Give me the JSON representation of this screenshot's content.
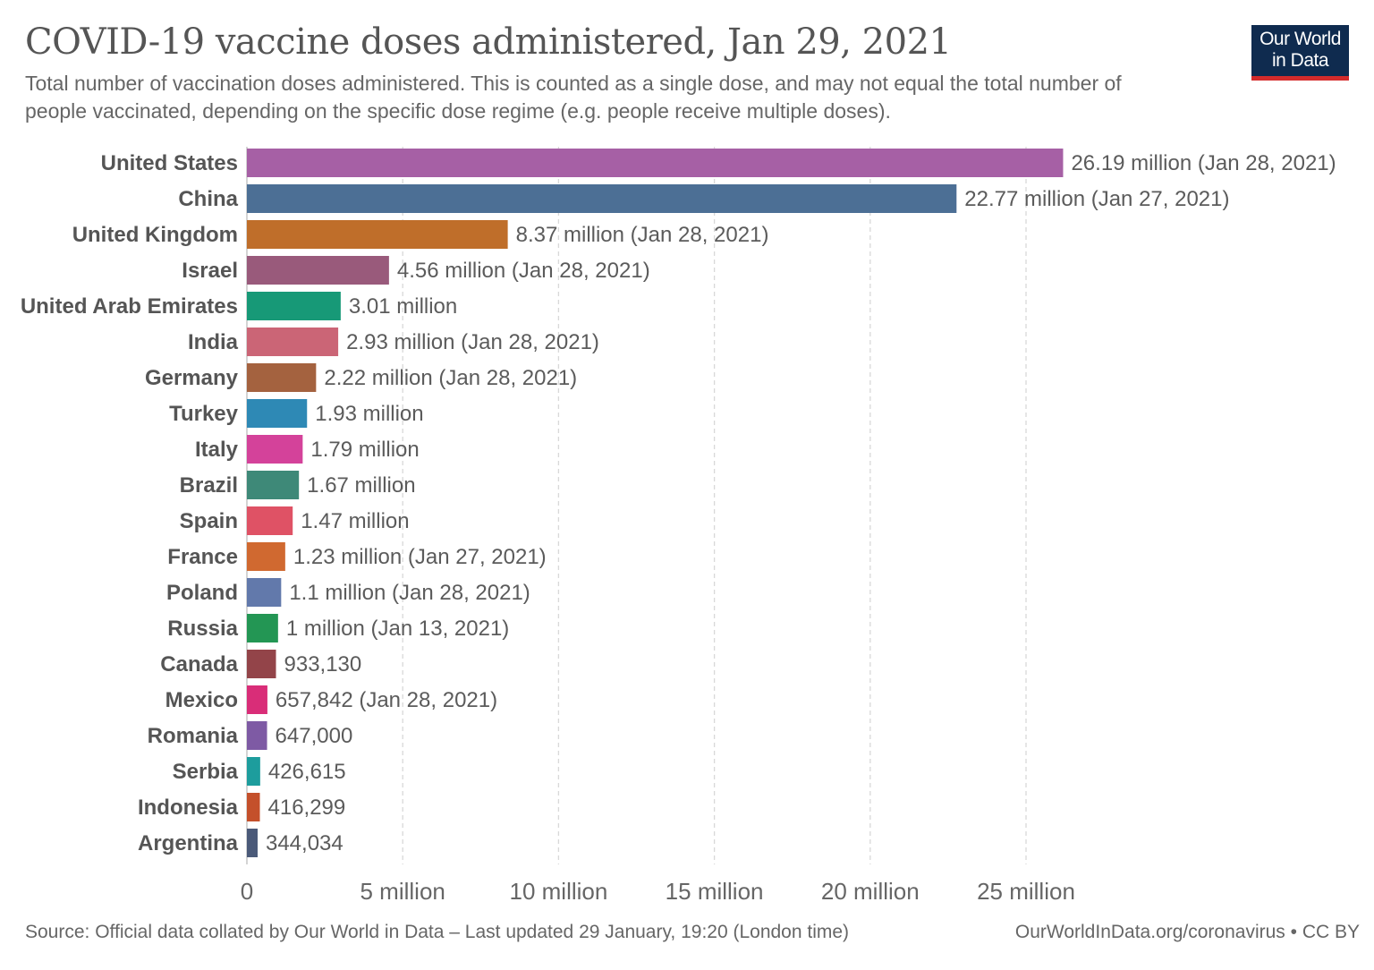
{
  "header": {
    "title": "COVID-19 vaccine doses administered, Jan 29, 2021",
    "subtitle": "Total number of vaccination doses administered. This is counted as a single dose, and may not equal the total number of people vaccinated, depending on the specific dose regime (e.g. people receive multiple doses).",
    "logo_line1": "Our World",
    "logo_line2": "in Data"
  },
  "footer": {
    "source": "Source: Official data collated by Our World in Data – Last updated 29 January, 19:20 (London time)",
    "link": "OurWorldInData.org/coronavirus • CC BY"
  },
  "colors": {
    "logo_bg": "#0f2b4f",
    "logo_accent": "#d42b2b",
    "gridline": "#d8d8d8"
  },
  "chart_data": {
    "type": "bar",
    "orientation": "horizontal",
    "title": "COVID-19 vaccine doses administered, Jan 29, 2021",
    "xlim": [
      0,
      27000000
    ],
    "x_ticks": [
      0,
      5000000,
      10000000,
      15000000,
      20000000,
      25000000
    ],
    "x_tick_labels": [
      "0",
      "5 million",
      "10 million",
      "15 million",
      "20 million",
      "25 million"
    ],
    "grid": true,
    "categories": [
      "United States",
      "China",
      "United Kingdom",
      "Israel",
      "United Arab Emirates",
      "India",
      "Germany",
      "Turkey",
      "Italy",
      "Brazil",
      "Spain",
      "France",
      "Poland",
      "Russia",
      "Canada",
      "Mexico",
      "Romania",
      "Serbia",
      "Indonesia",
      "Argentina"
    ],
    "values": [
      26190000,
      22770000,
      8370000,
      4560000,
      3010000,
      2930000,
      2220000,
      1930000,
      1790000,
      1670000,
      1470000,
      1230000,
      1100000,
      1000000,
      933130,
      657842,
      647000,
      426615,
      416299,
      344034
    ],
    "value_labels": [
      "26.19 million (Jan 28, 2021)",
      "22.77 million (Jan 27, 2021)",
      "8.37 million (Jan 28, 2021)",
      "4.56 million (Jan 28, 2021)",
      "3.01 million",
      "2.93 million (Jan 28, 2021)",
      "2.22 million (Jan 28, 2021)",
      "1.93 million",
      "1.79 million",
      "1.67 million",
      "1.47 million",
      "1.23 million (Jan 27, 2021)",
      "1.1 million (Jan 28, 2021)",
      "1 million (Jan 13, 2021)",
      "933,130",
      "657,842 (Jan 28, 2021)",
      "647,000",
      "426,615",
      "416,299",
      "344,034"
    ],
    "bar_colors": [
      "#a660a5",
      "#4c6f95",
      "#bf6e2a",
      "#995a7b",
      "#179977",
      "#cb6576",
      "#a4623f",
      "#2e89b5",
      "#d4429a",
      "#3e8978",
      "#df5265",
      "#d06930",
      "#6279ab",
      "#239654",
      "#934449",
      "#d92d78",
      "#7e5aa4",
      "#1d9d9d",
      "#c4502b",
      "#4b5a79"
    ]
  }
}
